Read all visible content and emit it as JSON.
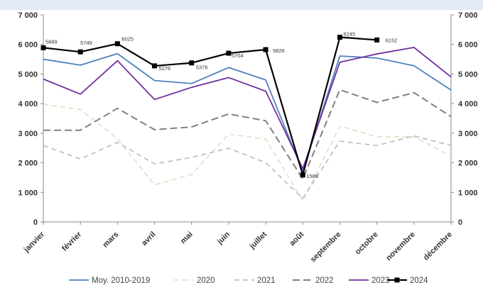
{
  "chart_data": {
    "type": "line",
    "title": "",
    "xlabel": "",
    "ylabel": "",
    "ylim": [
      0,
      7000
    ],
    "yticks": [
      0,
      1000,
      2000,
      3000,
      4000,
      5000,
      6000,
      7000
    ],
    "ytick_labels": [
      "0",
      "1 000",
      "2 000",
      "3 000",
      "4 000",
      "5 000",
      "6 000",
      "7 000"
    ],
    "secondary_axis": true,
    "grid": false,
    "legend_position": "bottom",
    "categories": [
      "janvier",
      "février",
      "mars",
      "avril",
      "mai",
      "juin",
      "juillet",
      "août",
      "septembre",
      "octobre",
      "novembre",
      "décembre"
    ],
    "series": [
      {
        "name": "Moy. 2010-2019",
        "color": "#4f81bd",
        "style": "solid",
        "values": [
          5500,
          5300,
          5690,
          4780,
          4680,
          5220,
          4800,
          1700,
          5610,
          5540,
          5280,
          4460
        ]
      },
      {
        "name": "2020",
        "color": "#e0e3c8",
        "style": "dashed",
        "values": [
          3980,
          3800,
          2820,
          1250,
          1600,
          2970,
          2800,
          720,
          3240,
          2880,
          2880,
          2230
        ]
      },
      {
        "name": "2021",
        "color": "#c0c0c0",
        "style": "dashed",
        "values": [
          2580,
          2130,
          2690,
          1960,
          2180,
          2490,
          2000,
          790,
          2730,
          2580,
          2910,
          2580
        ]
      },
      {
        "name": "2022",
        "color": "#808080",
        "style": "dashed",
        "values": [
          3100,
          3100,
          3840,
          3120,
          3210,
          3650,
          3420,
          1450,
          4470,
          4040,
          4370,
          3560
        ]
      },
      {
        "name": "2023",
        "color": "#7030a0",
        "style": "solid",
        "values": [
          4830,
          4320,
          5450,
          4140,
          4550,
          4880,
          4420,
          1800,
          5400,
          5680,
          5900,
          4900
        ]
      },
      {
        "name": "2024",
        "color": "#000000",
        "style": "solid-marker",
        "values": [
          5889,
          5749,
          6025,
          5276,
          5376,
          5704,
          5826,
          1586,
          6245,
          6152,
          null,
          null
        ]
      }
    ],
    "data_labels": [
      "5889",
      "5749",
      "6025",
      "5276",
      "5376",
      "5704",
      "5826",
      "1586",
      "6245",
      "6152"
    ]
  }
}
